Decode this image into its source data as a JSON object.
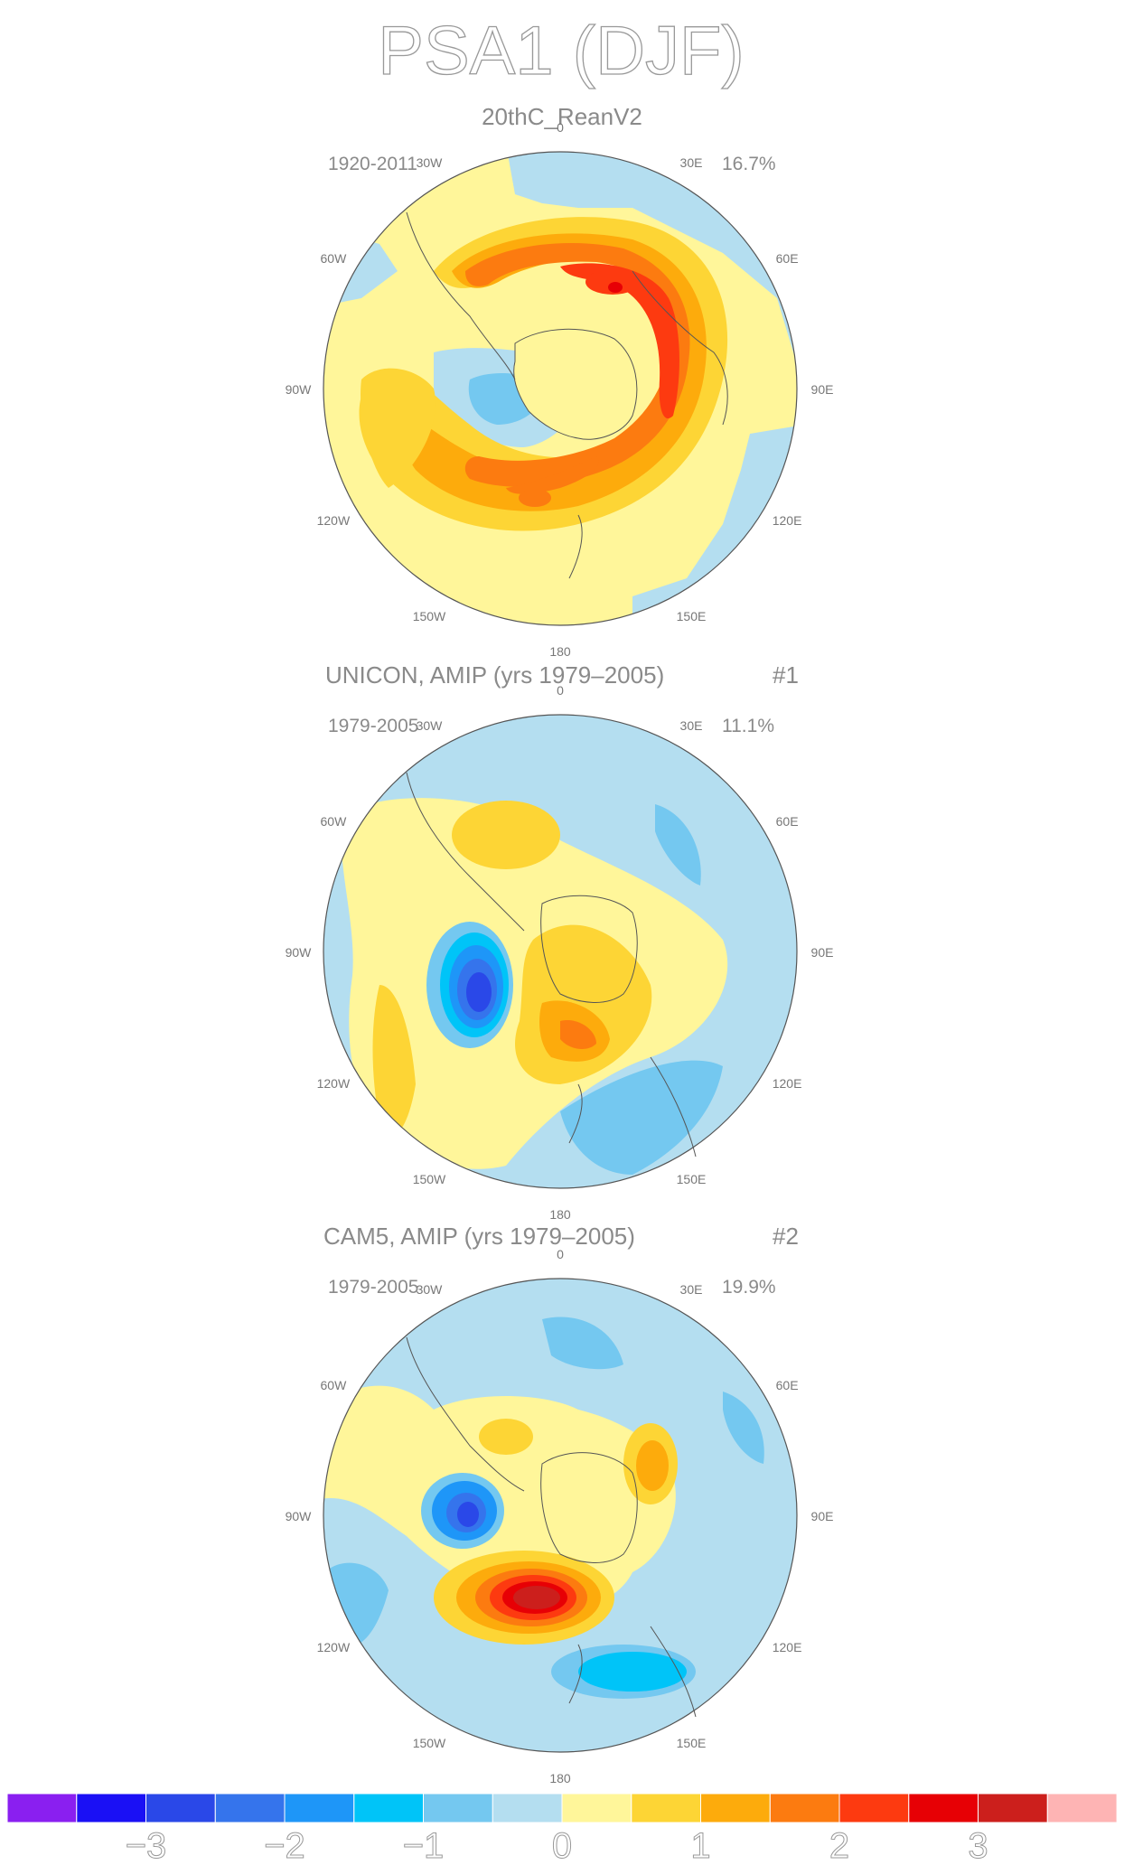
{
  "title": "PSA1 (DJF)",
  "panels": [
    {
      "title": "20thC_ReanV2",
      "tag": "",
      "years": "1920-2011",
      "variance": "16.7%"
    },
    {
      "title": "UNICON, AMIP (yrs 1979–2005)",
      "tag": "#1",
      "years": "1979-2005",
      "variance": "11.1%"
    },
    {
      "title": "CAM5, AMIP (yrs 1979–2005)",
      "tag": "#2",
      "years": "1979-2005",
      "variance": "19.9%"
    }
  ],
  "longitude_labels": [
    "0",
    "30E",
    "60E",
    "90E",
    "120E",
    "150E",
    "180",
    "150W",
    "120W",
    "90W",
    "60W",
    "30W"
  ],
  "colorbar": {
    "colors": [
      "#8a1ff0",
      "#1a10f5",
      "#2a48e8",
      "#3574ec",
      "#1e96f8",
      "#00c4f8",
      "#74c8f0",
      "#b4def0",
      "#fff69a",
      "#fdd535",
      "#fdab0c",
      "#fc7b10",
      "#fd3a10",
      "#e70005",
      "#cc1f1c",
      "#feb4b4"
    ],
    "tick_labels": [
      "−3",
      "−2",
      "−1",
      "0",
      "1",
      "2",
      "3"
    ],
    "tick_values": [
      -3,
      -2,
      -1,
      0,
      1,
      2,
      3
    ]
  }
}
